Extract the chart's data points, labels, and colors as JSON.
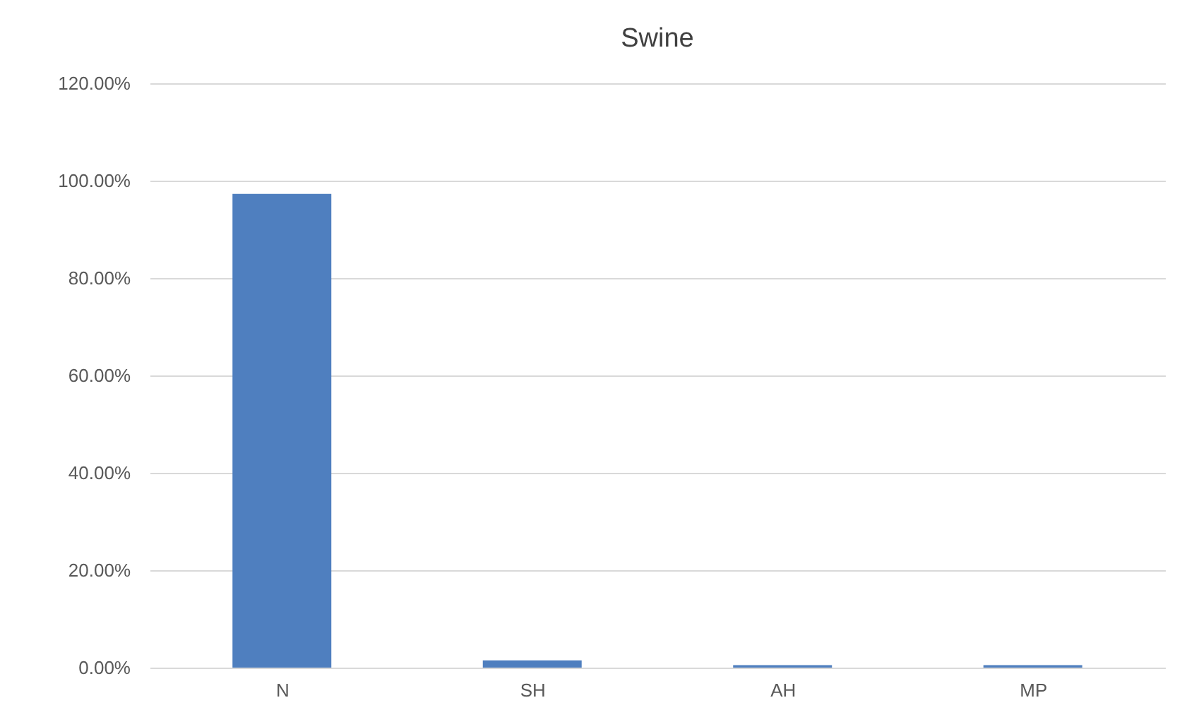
{
  "chart_data": {
    "type": "bar",
    "title": "Swine",
    "categories": [
      "N",
      "SH",
      "AH",
      "MP"
    ],
    "values": [
      97.3,
      1.5,
      0.5,
      0.5
    ],
    "color": "#4f7fbf",
    "ylim": [
      0,
      120
    ],
    "yticks": [
      {
        "value": 0,
        "label": "0.00%"
      },
      {
        "value": 20,
        "label": "20.00%"
      },
      {
        "value": 40,
        "label": "40.00%"
      },
      {
        "value": 60,
        "label": "60.00%"
      },
      {
        "value": 80,
        "label": "80.00%"
      },
      {
        "value": 100,
        "label": "100.00%"
      },
      {
        "value": 120,
        "label": "120.00%"
      }
    ],
    "grid": "y"
  }
}
